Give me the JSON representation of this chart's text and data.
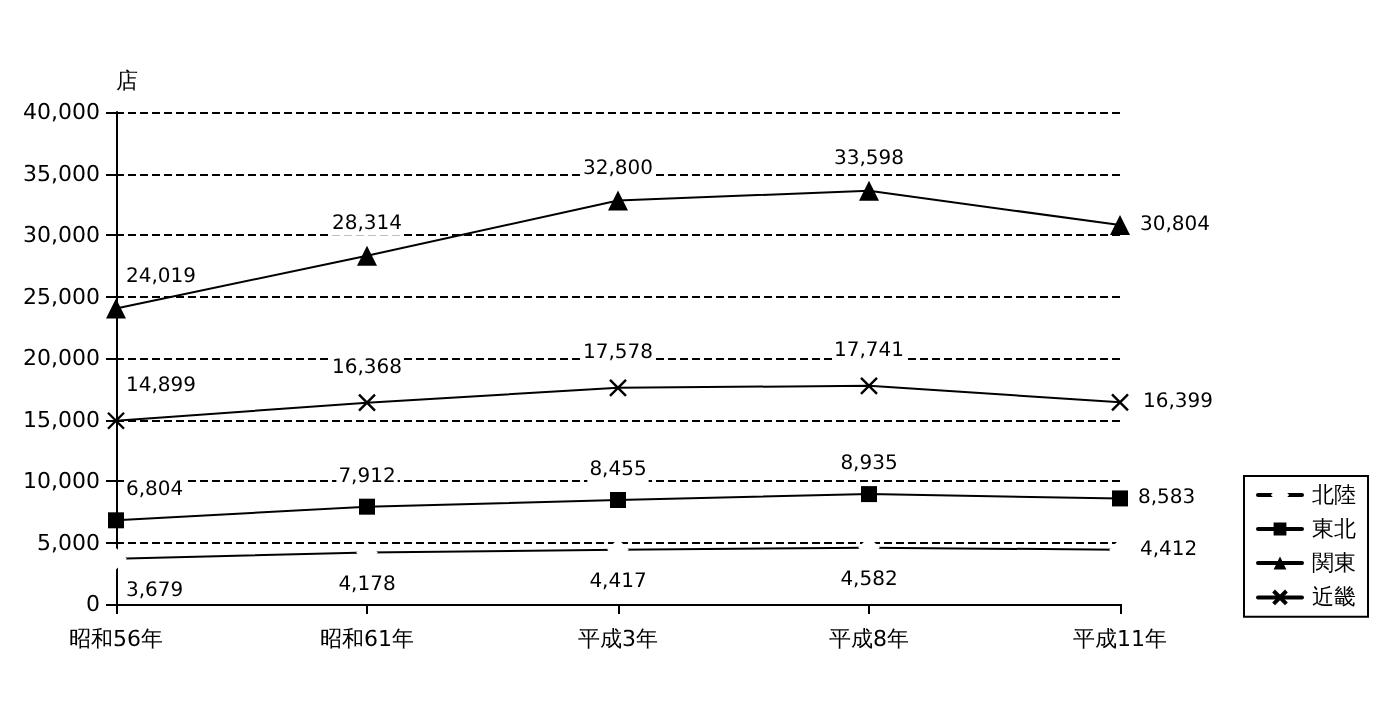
{
  "chart_data": {
    "type": "line",
    "ylabel": "店",
    "categories": [
      "昭和56年",
      "昭和61年",
      "平成3年",
      "平成8年",
      "平成11年"
    ],
    "series": [
      {
        "name": "北陸",
        "color": "#000000",
        "marker": "diamond",
        "values": [
          3679,
          4178,
          4417,
          4582,
          4412
        ],
        "value_labels": [
          "3,679",
          "4,178",
          "4,417",
          "4,582",
          "4,412"
        ]
      },
      {
        "name": "東北",
        "color": "#000000",
        "marker": "square",
        "values": [
          6804,
          7912,
          8455,
          8935,
          8583
        ],
        "value_labels": [
          "6,804",
          "7,912",
          "8,455",
          "8,935",
          "8,583"
        ]
      },
      {
        "name": "関東",
        "color": "#000000",
        "marker": "triangle",
        "values": [
          24019,
          28314,
          32800,
          33598,
          30804
        ],
        "value_labels": [
          "24,019",
          "28,314",
          "32,800",
          "33,598",
          "30,804"
        ]
      },
      {
        "name": "近畿",
        "color": "#000000",
        "marker": "cross",
        "values": [
          14899,
          16368,
          17578,
          17741,
          16399
        ],
        "value_labels": [
          "14,899",
          "16,368",
          "17,578",
          "17,741",
          "16,399"
        ]
      }
    ],
    "ylim": [
      0,
      40000
    ],
    "yticks": [
      0,
      {
        "value": 5000,
        "label": "5,000"
      },
      {
        "value": 10000,
        "label": "10,000"
      },
      {
        "value": 15000,
        "label": "15,000"
      },
      {
        "value": 20000,
        "label": "20,000"
      },
      {
        "value": 25000,
        "label": "25,000"
      },
      {
        "value": 30000,
        "label": "30,000"
      },
      {
        "value": 35000,
        "label": "35,000"
      },
      {
        "value": 40000,
        "label": "40,000"
      }
    ],
    "grid": "y",
    "legend": "right",
    "line_style": "solid"
  }
}
